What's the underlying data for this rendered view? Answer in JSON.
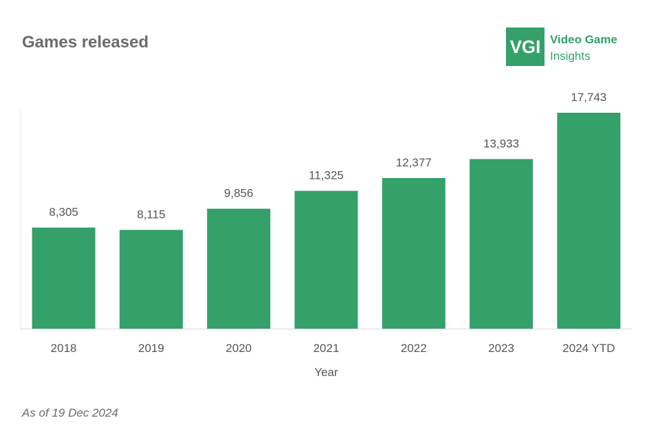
{
  "header": {
    "title": "Games released"
  },
  "logo": {
    "mark": "VGI",
    "line1": "Video Game",
    "line2": "Insights"
  },
  "footnote": "As of 19 Dec 2024",
  "colors": {
    "bar": "#34a06a",
    "brand": "#34a06a",
    "text": "#555555"
  },
  "chart_data": {
    "type": "bar",
    "title": "Games released",
    "xlabel": "Year",
    "ylabel": "",
    "categories": [
      "2018",
      "2019",
      "2020",
      "2021",
      "2022",
      "2023",
      "2024 YTD"
    ],
    "values": [
      8305,
      8115,
      9856,
      11325,
      12377,
      13933,
      17743
    ],
    "value_labels": [
      "8,305",
      "8,115",
      "9,856",
      "11,325",
      "12,377",
      "13,933",
      "17,743"
    ],
    "ylim": [
      0,
      17743
    ],
    "grid": false,
    "legend": "none"
  }
}
